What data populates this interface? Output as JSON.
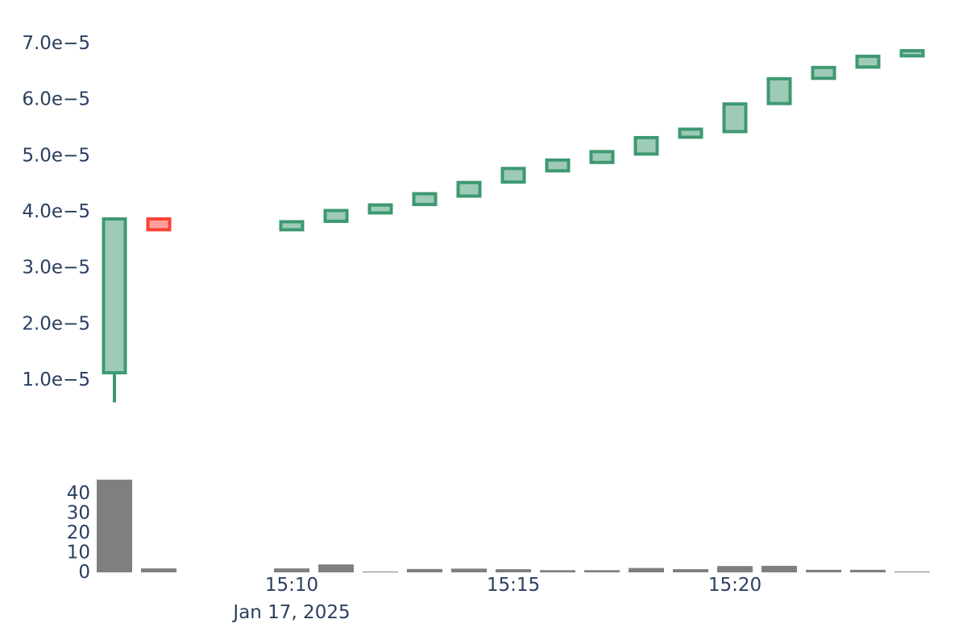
{
  "chart": {
    "background": "#ffffff",
    "text_color": "#2a3f5f",
    "price_axis": {
      "tick_labels": [
        "7.0e−5",
        "6.0e−5",
        "5.0e−5",
        "4.0e−5",
        "3.0e−5",
        "2.0e−5",
        "1.0e−5"
      ],
      "tick_values": [
        7e-05,
        6e-05,
        5e-05,
        4e-05,
        3e-05,
        2e-05,
        1e-05
      ]
    },
    "volume_axis": {
      "tick_labels": [
        "40",
        "30",
        "20",
        "10",
        "0"
      ],
      "tick_values": [
        40,
        30,
        20,
        10,
        0
      ]
    },
    "time_axis": {
      "tick_labels": [
        "15:10",
        "15:15",
        "15:20"
      ],
      "date_label": "Jan 17, 2025"
    },
    "colors": {
      "increasing_line": "#3D9970",
      "increasing_fill": "#9ECBB7",
      "decreasing_line": "#FF4136",
      "decreasing_fill": "#FFA09B",
      "volume_bar": "#7F7F7F",
      "text": "#2a3f5f"
    }
  },
  "chart_data": [
    {
      "type": "candlestick",
      "title": "",
      "xlabel": "",
      "ylabel": "",
      "x": [
        "15:06",
        "15:07",
        "15:10",
        "15:11",
        "15:12",
        "15:13",
        "15:14",
        "15:15",
        "15:16",
        "15:17",
        "15:18",
        "15:19",
        "15:20",
        "15:21",
        "15:22",
        "15:23",
        "15:24"
      ],
      "date": "Jan 17, 2025",
      "open": [
        1.1e-05,
        3.9e-05,
        3.65e-05,
        3.8e-05,
        3.95e-05,
        4.1e-05,
        4.25e-05,
        4.5e-05,
        4.7e-05,
        4.85e-05,
        5e-05,
        5.3e-05,
        5.4e-05,
        5.9e-05,
        6.35e-05,
        6.55e-05,
        6.75e-05
      ],
      "high": [
        3.9e-05,
        3.9e-05,
        3.85e-05,
        4.05e-05,
        4.15e-05,
        4.35e-05,
        4.55e-05,
        4.8e-05,
        4.95e-05,
        5.1e-05,
        5.35e-05,
        5.5e-05,
        5.95e-05,
        6.4e-05,
        6.6e-05,
        6.8e-05,
        6.9e-05
      ],
      "low": [
        6e-06,
        3.65e-05,
        3.65e-05,
        3.8e-05,
        3.95e-05,
        4.1e-05,
        4.25e-05,
        4.5e-05,
        4.7e-05,
        4.85e-05,
        5e-05,
        5.3e-05,
        5.4e-05,
        5.9e-05,
        6.35e-05,
        6.55e-05,
        6.75e-05
      ],
      "close": [
        3.9e-05,
        3.65e-05,
        3.85e-05,
        4.05e-05,
        4.15e-05,
        4.35e-05,
        4.55e-05,
        4.8e-05,
        4.95e-05,
        5.1e-05,
        5.35e-05,
        5.5e-05,
        5.95e-05,
        6.4e-05,
        6.6e-05,
        6.8e-05,
        6.9e-05
      ],
      "ylim": [
        3e-06,
        7.1e-05
      ],
      "grid": false,
      "legend": "none"
    },
    {
      "type": "bar",
      "title": "",
      "xlabel": "",
      "ylabel": "",
      "categories": [
        "15:06",
        "15:07",
        "15:10",
        "15:11",
        "15:12",
        "15:13",
        "15:14",
        "15:15",
        "15:16",
        "15:17",
        "15:18",
        "15:19",
        "15:20",
        "15:21",
        "15:22",
        "15:23",
        "15:24"
      ],
      "values": [
        47,
        2,
        2,
        4,
        0.4,
        1.7,
        1.9,
        1.6,
        1.1,
        1.1,
        2.2,
        1.6,
        3.2,
        3.3,
        1.3,
        1.3,
        0.4
      ],
      "ylim": [
        0,
        48
      ],
      "grid": false,
      "legend": "none"
    }
  ]
}
